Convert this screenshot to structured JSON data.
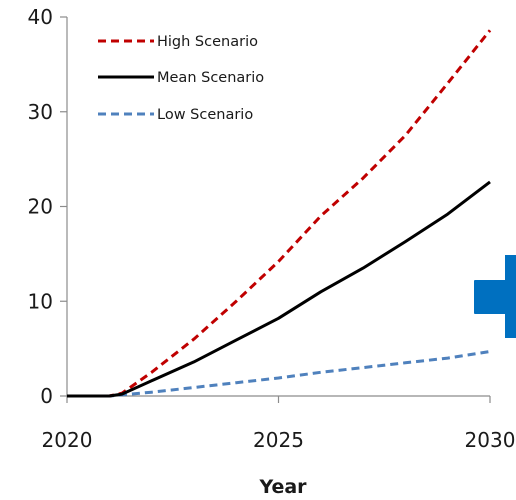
{
  "chart_data": {
    "type": "line",
    "title": "",
    "xlabel": "Year",
    "ylabel": "",
    "xlim": [
      2020,
      2030
    ],
    "ylim": [
      0,
      40
    ],
    "xticks": [
      2020,
      2025,
      2030
    ],
    "yticks": [
      0,
      10,
      20,
      30,
      40
    ],
    "grid": false,
    "legend_position": "top-left",
    "series": [
      {
        "name": "High Scenario",
        "color": "#c00000",
        "dash": "dashed",
        "x": [
          2020,
          2020.5,
          2021,
          2021.3,
          2022,
          2023,
          2024,
          2025,
          2026,
          2027,
          2028,
          2029,
          2030
        ],
        "y": [
          0,
          0,
          0,
          0.3,
          2.5,
          6.0,
          10.0,
          14.2,
          19.0,
          23.0,
          27.5,
          33.0,
          38.6
        ]
      },
      {
        "name": "Mean Scenario",
        "color": "#000000",
        "dash": "solid",
        "x": [
          2020,
          2020.5,
          2021,
          2021.3,
          2022,
          2023,
          2024,
          2025,
          2026,
          2027,
          2028,
          2029,
          2030
        ],
        "y": [
          0,
          0,
          0,
          0.2,
          1.6,
          3.6,
          5.9,
          8.2,
          11.0,
          13.5,
          16.3,
          19.2,
          22.6
        ]
      },
      {
        "name": "Low Scenario",
        "color": "#4f81bd",
        "dash": "dashed",
        "x": [
          2020,
          2021,
          2022,
          2023,
          2024,
          2025,
          2026,
          2027,
          2028,
          2029,
          2030
        ],
        "y": [
          0,
          0,
          0.4,
          0.9,
          1.4,
          1.9,
          2.5,
          3.0,
          3.5,
          4.0,
          4.7
        ]
      }
    ]
  },
  "decor": {
    "arrow_color": "#0070c0",
    "arrow_icon": "right-arrow-icon"
  }
}
